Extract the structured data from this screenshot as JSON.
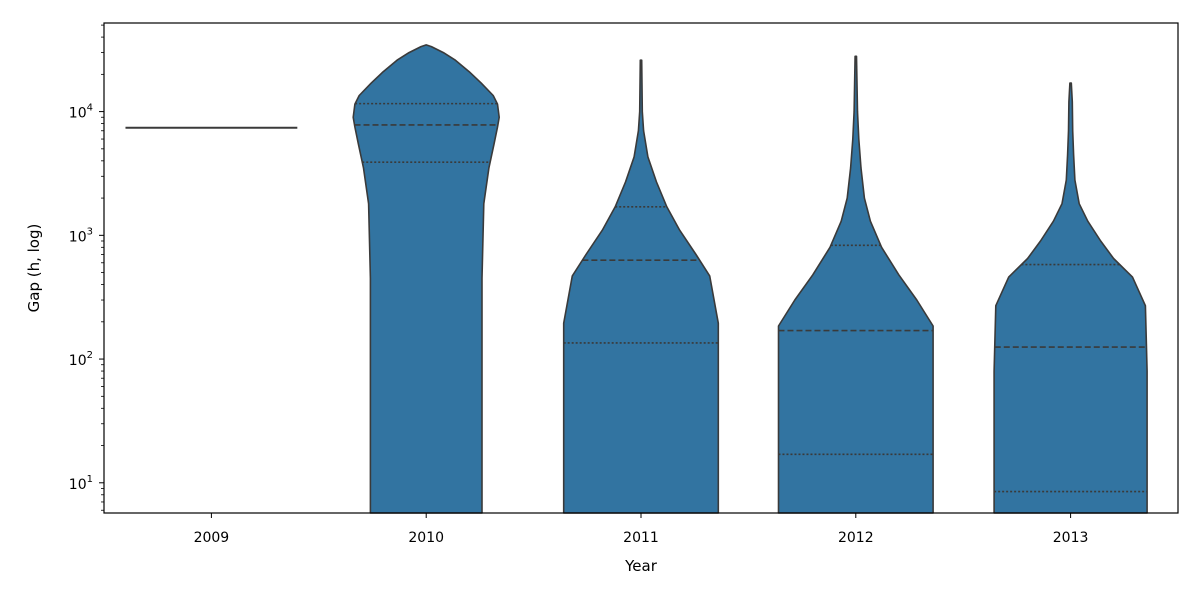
{
  "chart_data": {
    "type": "violin",
    "xlabel": "Year",
    "ylabel": "Gap (h, log)",
    "yscale": "log",
    "ylim": [
      5.7,
      52000
    ],
    "categories": [
      "2009",
      "2010",
      "2011",
      "2012",
      "2013"
    ],
    "yticks": [
      {
        "value": 10,
        "base": "10",
        "exp": "1"
      },
      {
        "value": 100,
        "base": "10",
        "exp": "2"
      },
      {
        "value": 1000,
        "base": "10",
        "exp": "3"
      },
      {
        "value": 10000,
        "base": "10",
        "exp": "4"
      }
    ],
    "fill_color": "#3274a1",
    "edge_color": "#3a3a3a",
    "violins": [
      {
        "year": "2009",
        "single_value": 7400,
        "profile": [],
        "quartiles": []
      },
      {
        "year": "2010",
        "profile": [
          [
            5.7,
            0.65
          ],
          [
            450,
            0.65
          ],
          [
            1800,
            0.67
          ],
          [
            3500,
            0.73
          ],
          [
            5500,
            0.79
          ],
          [
            7500,
            0.83
          ],
          [
            9000,
            0.85
          ],
          [
            11500,
            0.83
          ],
          [
            13500,
            0.78
          ],
          [
            17000,
            0.64
          ],
          [
            21000,
            0.5
          ],
          [
            26000,
            0.34
          ],
          [
            30000,
            0.2
          ],
          [
            33500,
            0.06
          ],
          [
            34600,
            0.0
          ]
        ],
        "quartiles": [
          3900,
          7800,
          11600
        ]
      },
      {
        "year": "2011",
        "profile": [
          [
            5.7,
            0.9
          ],
          [
            195,
            0.9
          ],
          [
            470,
            0.8
          ],
          [
            700,
            0.64
          ],
          [
            1100,
            0.45
          ],
          [
            1700,
            0.3
          ],
          [
            2700,
            0.18
          ],
          [
            4300,
            0.08
          ],
          [
            7000,
            0.03
          ],
          [
            10000,
            0.015
          ],
          [
            26000,
            0.008
          ]
        ],
        "quartiles": [
          135,
          630,
          1700
        ]
      },
      {
        "year": "2012",
        "profile": [
          [
            5.7,
            0.9
          ],
          [
            185,
            0.9
          ],
          [
            300,
            0.71
          ],
          [
            480,
            0.5
          ],
          [
            800,
            0.3
          ],
          [
            1300,
            0.17
          ],
          [
            2000,
            0.1
          ],
          [
            3500,
            0.06
          ],
          [
            6000,
            0.035
          ],
          [
            10000,
            0.02
          ],
          [
            28000,
            0.008
          ]
        ],
        "quartiles": [
          17,
          170,
          830
        ]
      },
      {
        "year": "2013",
        "profile": [
          [
            5.7,
            0.89
          ],
          [
            80,
            0.89
          ],
          [
            270,
            0.87
          ],
          [
            460,
            0.72
          ],
          [
            650,
            0.5
          ],
          [
            900,
            0.35
          ],
          [
            1300,
            0.2
          ],
          [
            1800,
            0.1
          ],
          [
            2800,
            0.05
          ],
          [
            4500,
            0.035
          ],
          [
            7000,
            0.025
          ],
          [
            12000,
            0.02
          ],
          [
            17000,
            0.008
          ]
        ],
        "quartiles": [
          8.5,
          125,
          580
        ]
      }
    ]
  }
}
